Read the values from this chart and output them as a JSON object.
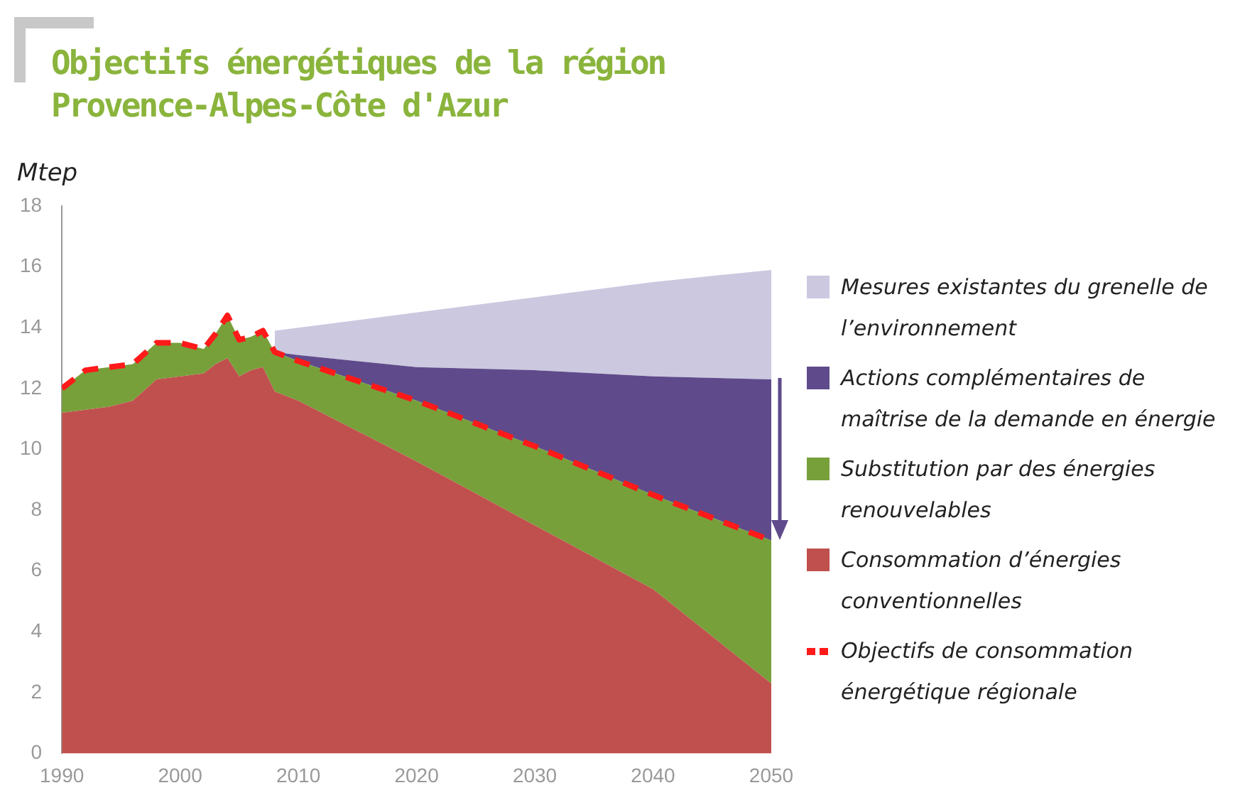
{
  "chart_data": {
    "type": "area",
    "title": "Objectifs énergétiques de la région Provence-Alpes-Côte d'Azur",
    "ylabel": "Mtep",
    "x": [
      1990,
      1992,
      1994,
      1996,
      1998,
      2000,
      2002,
      2003,
      2004,
      2005,
      2006,
      2007,
      2008,
      2010,
      2020,
      2030,
      2040,
      2050
    ],
    "stacked": true,
    "marker": "none",
    "legend": "right",
    "grid": false,
    "xlim": [
      1990,
      2050
    ],
    "xticks": [
      1990,
      2000,
      2010,
      2020,
      2030,
      2040,
      2050
    ],
    "ylim": [
      0,
      18
    ],
    "yticks": [
      0,
      2,
      4,
      6,
      8,
      10,
      12,
      14,
      16,
      18
    ],
    "series": [
      {
        "name": "Consommation d’énergies conventionnelles",
        "color": "#c0504d",
        "values": [
          11.2,
          11.3,
          11.4,
          11.6,
          12.3,
          12.4,
          12.5,
          12.8,
          13.0,
          12.4,
          12.6,
          12.7,
          11.9,
          11.6,
          9.6,
          7.5,
          5.4,
          2.3
        ]
      },
      {
        "name": "Substitution par des énergies renouvelables",
        "color": "#77a03a",
        "values": [
          0.8,
          1.3,
          1.3,
          1.2,
          1.2,
          1.1,
          0.8,
          1.0,
          1.4,
          1.2,
          1.1,
          1.2,
          1.3,
          1.3,
          2.0,
          2.6,
          3.1,
          4.7
        ]
      },
      {
        "name": "Actions complémentaires de maîtrise de la demande en énergie",
        "color": "#5f4b8b",
        "values": [
          null,
          null,
          null,
          null,
          null,
          null,
          null,
          null,
          null,
          null,
          null,
          null,
          0,
          0.2,
          1.1,
          2.5,
          3.9,
          5.3
        ]
      },
      {
        "name": "Mesures existantes du grenelle de l’environnement",
        "color": "#ccc8e0",
        "values": [
          null,
          null,
          null,
          null,
          null,
          null,
          null,
          null,
          null,
          null,
          null,
          null,
          0.7,
          0.9,
          1.8,
          2.4,
          3.1,
          3.6
        ]
      },
      {
        "name": "Objectifs de consommation énergétique régionale",
        "type": "line",
        "line_style": "dashed",
        "color": "#ff1a1a",
        "values": [
          12.0,
          12.6,
          12.7,
          12.8,
          13.5,
          13.5,
          13.3,
          13.8,
          14.4,
          13.6,
          13.7,
          13.9,
          13.2,
          12.9,
          11.6,
          10.1,
          8.5,
          7.0
        ]
      }
    ]
  }
}
